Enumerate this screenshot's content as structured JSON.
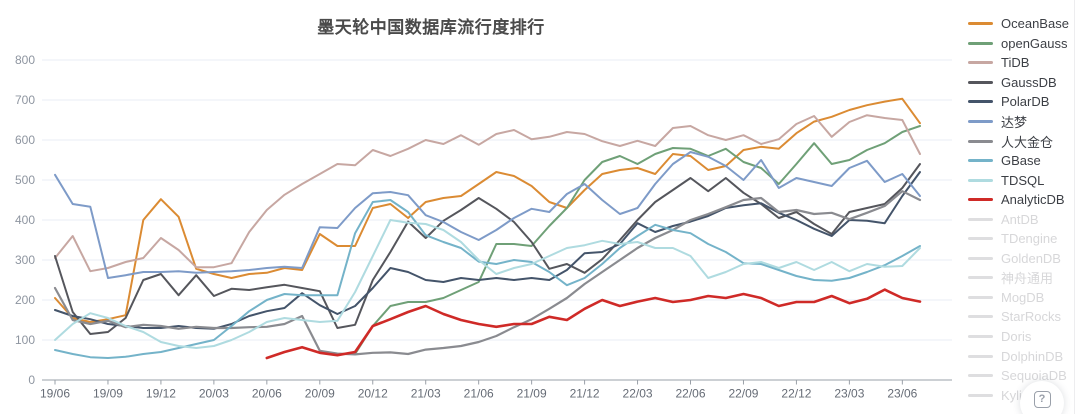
{
  "page": {
    "background": "#ffffff"
  },
  "help_button": {
    "icon": "question-mark-icon",
    "label": "?"
  },
  "chart_data": {
    "type": "line",
    "title": "墨天轮中国数据库流行度排行",
    "x_unit": "month",
    "x_start": "19/06",
    "x_end": "23/07",
    "x_monthly_points": 50,
    "x_tick_labels": [
      "19/06",
      "19/09",
      "19/12",
      "20/03",
      "20/06",
      "20/09",
      "20/12",
      "21/03",
      "21/06",
      "21/09",
      "21/12",
      "22/03",
      "22/06",
      "22/09",
      "22/12",
      "23/03",
      "23/06"
    ],
    "ylim": [
      0,
      800
    ],
    "y_ticks": [
      0,
      100,
      200,
      300,
      400,
      500,
      600,
      700,
      800
    ],
    "grid": true,
    "legend_position": "right",
    "axis_color": "#9aa0a8",
    "grid_color": "#e8eef4",
    "axis_label_color": "#8e95a0",
    "disabled_color": "#dedee0",
    "series": [
      {
        "name": "OceanBase",
        "color": "#db8b33",
        "width": 2,
        "values": [
          205,
          155,
          145,
          152,
          162,
          400,
          452,
          408,
          278,
          265,
          255,
          265,
          268,
          280,
          275,
          365,
          335,
          335,
          430,
          440,
          405,
          445,
          455,
          460,
          490,
          520,
          510,
          485,
          445,
          430,
          475,
          515,
          525,
          530,
          515,
          565,
          560,
          525,
          535,
          575,
          583,
          578,
          617,
          646,
          658,
          675,
          687,
          696,
          703,
          642
        ]
      },
      {
        "name": "openGauss",
        "color": "#6fa077",
        "width": 2,
        "values": [
          null,
          null,
          null,
          null,
          null,
          null,
          null,
          null,
          null,
          null,
          null,
          null,
          null,
          null,
          null,
          null,
          null,
          65,
          135,
          185,
          195,
          195,
          205,
          225,
          245,
          340,
          340,
          335,
          385,
          430,
          500,
          545,
          560,
          540,
          565,
          580,
          578,
          560,
          578,
          545,
          530,
          490,
          540,
          592,
          540,
          550,
          575,
          592,
          620,
          635
        ]
      },
      {
        "name": "TiDB",
        "color": "#c7a7a2",
        "width": 2,
        "values": [
          305,
          360,
          272,
          280,
          295,
          305,
          355,
          325,
          282,
          282,
          292,
          370,
          425,
          463,
          490,
          515,
          540,
          537,
          575,
          560,
          578,
          600,
          590,
          612,
          588,
          615,
          625,
          602,
          608,
          620,
          615,
          597,
          585,
          598,
          585,
          630,
          635,
          612,
          600,
          612,
          590,
          602,
          640,
          660,
          608,
          645,
          662,
          655,
          650,
          565
        ]
      },
      {
        "name": "GaussDB",
        "color": "#55565c",
        "width": 2,
        "values": [
          310,
          170,
          115,
          120,
          155,
          250,
          265,
          212,
          262,
          210,
          228,
          225,
          232,
          238,
          230,
          222,
          130,
          138,
          250,
          320,
          396,
          355,
          398,
          425,
          455,
          428,
          395,
          345,
          278,
          290,
          268,
          302,
          350,
          400,
          445,
          475,
          505,
          472,
          505,
          468,
          440,
          405,
          420,
          390,
          365,
          420,
          430,
          440,
          480,
          540
        ]
      },
      {
        "name": "PolarDB",
        "color": "#44546a",
        "width": 2,
        "values": [
          175,
          160,
          152,
          140,
          135,
          130,
          130,
          135,
          130,
          128,
          140,
          160,
          172,
          180,
          217,
          187,
          165,
          185,
          230,
          280,
          270,
          250,
          245,
          255,
          250,
          255,
          250,
          255,
          250,
          275,
          317,
          320,
          340,
          392,
          370,
          385,
          396,
          410,
          430,
          437,
          442,
          418,
          400,
          378,
          360,
          400,
          398,
          392,
          460,
          520
        ]
      },
      {
        "name": "达梦",
        "color": "#7e9bc8",
        "width": 2,
        "values": [
          513,
          440,
          433,
          255,
          262,
          270,
          270,
          272,
          268,
          270,
          272,
          275,
          280,
          283,
          280,
          382,
          380,
          430,
          467,
          470,
          462,
          412,
          395,
          370,
          350,
          375,
          405,
          428,
          420,
          465,
          490,
          450,
          415,
          430,
          490,
          540,
          570,
          558,
          535,
          500,
          550,
          480,
          505,
          495,
          485,
          530,
          548,
          495,
          515,
          460
        ]
      },
      {
        "name": "人大金仓",
        "color": "#8a8b90",
        "width": 2.2,
        "values": [
          230,
          150,
          140,
          148,
          132,
          138,
          135,
          128,
          133,
          130,
          130,
          132,
          133,
          140,
          160,
          73,
          66,
          64,
          68,
          69,
          65,
          76,
          80,
          85,
          95,
          110,
          132,
          152,
          178,
          205,
          240,
          270,
          300,
          330,
          355,
          375,
          400,
          415,
          432,
          450,
          455,
          420,
          425,
          415,
          418,
          402,
          418,
          435,
          472,
          450
        ]
      },
      {
        "name": "GBase",
        "color": "#74b3c9",
        "width": 2,
        "values": [
          75,
          65,
          57,
          55,
          58,
          65,
          70,
          80,
          90,
          100,
          135,
          172,
          200,
          215,
          212,
          212,
          212,
          367,
          445,
          450,
          420,
          362,
          345,
          330,
          296,
          290,
          300,
          295,
          270,
          237,
          255,
          290,
          330,
          360,
          388,
          375,
          367,
          340,
          320,
          292,
          290,
          275,
          260,
          250,
          248,
          255,
          270,
          287,
          310,
          335
        ]
      },
      {
        "name": "TDSQL",
        "color": "#afdbe0",
        "width": 2,
        "values": [
          100,
          140,
          167,
          155,
          135,
          120,
          95,
          85,
          80,
          85,
          100,
          120,
          145,
          155,
          150,
          145,
          148,
          220,
          310,
          400,
          393,
          390,
          375,
          345,
          300,
          265,
          280,
          290,
          310,
          330,
          337,
          348,
          340,
          345,
          330,
          330,
          310,
          255,
          270,
          290,
          295,
          280,
          295,
          275,
          295,
          272,
          290,
          283,
          285,
          330
        ]
      },
      {
        "name": "AnalyticDB",
        "color": "#cf2a27",
        "width": 2.6,
        "values": [
          null,
          null,
          null,
          null,
          null,
          null,
          null,
          null,
          null,
          null,
          null,
          null,
          55,
          70,
          82,
          68,
          62,
          70,
          135,
          152,
          170,
          185,
          165,
          150,
          140,
          133,
          140,
          140,
          158,
          150,
          178,
          200,
          185,
          196,
          205,
          195,
          200,
          210,
          205,
          215,
          205,
          185,
          195,
          195,
          210,
          192,
          203,
          226,
          205,
          196
        ]
      }
    ],
    "legend_disabled": [
      "AntDB",
      "TDengine",
      "GoldenDB",
      "神舟通用",
      "MogDB",
      "StarRocks",
      "Doris",
      "DolphinDB",
      "SequoiaDB",
      "Kyligence"
    ]
  }
}
